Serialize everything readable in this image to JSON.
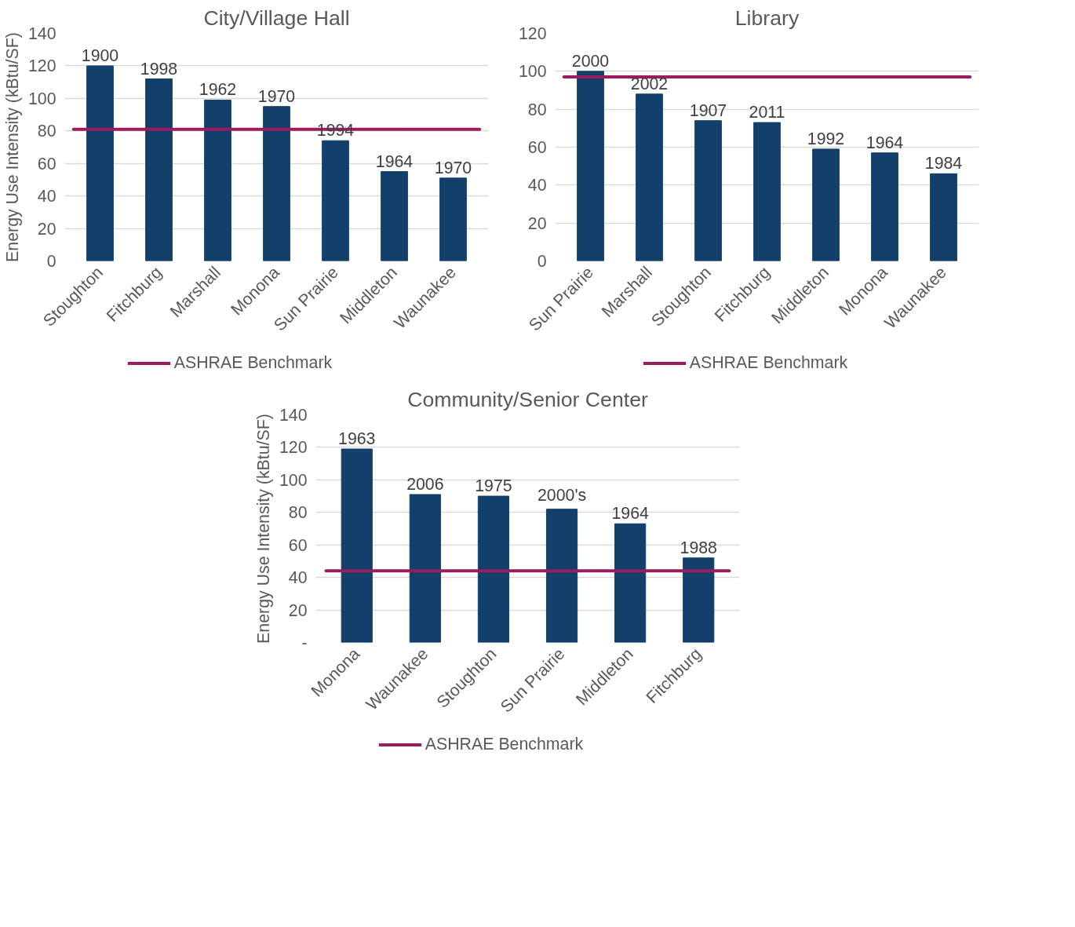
{
  "chart_data": [
    {
      "type": "bar",
      "title": "City/Village Hall",
      "ylabel": "Energy Use Intensity (kBtu/SF)",
      "categories": [
        "Stoughton",
        "Fitchburg",
        "Marshall",
        "Monona",
        "Sun Prairie",
        "Middleton",
        "Waunakee"
      ],
      "values": [
        120,
        112,
        99,
        95,
        74,
        55,
        51
      ],
      "annotations": [
        {
          "text": "1900",
          "x": "Stoughton",
          "y": 120
        },
        {
          "text": "1998",
          "x": "Fitchburg",
          "y": 112
        },
        {
          "text": "1962",
          "x": "Marshall",
          "y": 99
        },
        {
          "text": "1970",
          "x": "Monona",
          "y": 95
        },
        {
          "text": "1994",
          "x": "Sun Prairie",
          "y": 74
        },
        {
          "text": "1964",
          "x": "Middleton",
          "y": 55
        },
        {
          "text": "1970",
          "x": "Waunakee",
          "y": 51
        }
      ],
      "color": "#133f6b",
      "ylim": [
        0,
        140
      ],
      "yticks": [
        0,
        20,
        40,
        60,
        80,
        100,
        120,
        140
      ],
      "grid": "y",
      "legend": "bottom",
      "ref_lines": [
        {
          "axis": "y",
          "value": 81,
          "label": "ASHRAE Benchmark",
          "color": "#9b1c5f"
        }
      ]
    },
    {
      "type": "bar",
      "title": "Library",
      "categories": [
        "Sun Prairie",
        "Marshall",
        "Stoughton",
        "Fitchburg",
        "Middleton",
        "Monona",
        "Waunakee"
      ],
      "values": [
        100,
        88,
        74,
        73,
        59,
        57,
        46
      ],
      "annotations": [
        {
          "text": "2000",
          "x": "Sun Prairie",
          "y": 100
        },
        {
          "text": "2002",
          "x": "Marshall",
          "y": 88
        },
        {
          "text": "1907",
          "x": "Stoughton",
          "y": 74
        },
        {
          "text": "2011",
          "x": "Fitchburg",
          "y": 73
        },
        {
          "text": "1992",
          "x": "Middleton",
          "y": 59
        },
        {
          "text": "1964",
          "x": "Monona",
          "y": 57
        },
        {
          "text": "1984",
          "x": "Waunakee",
          "y": 46
        }
      ],
      "color": "#133f6b",
      "ylim": [
        0,
        120
      ],
      "yticks": [
        0,
        20,
        40,
        60,
        80,
        100,
        120
      ],
      "grid": "y",
      "legend": "bottom",
      "ref_lines": [
        {
          "axis": "y",
          "value": 97,
          "label": "ASHRAE Benchmark",
          "color": "#9b1c5f"
        }
      ]
    },
    {
      "type": "bar",
      "title": "Community/Senior Center",
      "ylabel": "Energy Use Intensity (kBtu/SF)",
      "categories": [
        "Monona",
        "Waunakee",
        "Stoughton",
        "Sun Prairie",
        "Middleton",
        "Fitchburg"
      ],
      "values": [
        119,
        91,
        90,
        82,
        73,
        52
      ],
      "annotations": [
        {
          "text": "1963",
          "x": "Monona",
          "y": 119
        },
        {
          "text": "2006",
          "x": "Waunakee",
          "y": 91
        },
        {
          "text": "1975",
          "x": "Stoughton",
          "y": 90
        },
        {
          "text": "2000's",
          "x": "Sun Prairie",
          "y": 82
        },
        {
          "text": "1964",
          "x": "Middleton",
          "y": 73
        },
        {
          "text": "1988",
          "x": "Fitchburg",
          "y": 52
        }
      ],
      "color": "#133f6b",
      "ylim": [
        0,
        140
      ],
      "yticks": [
        {
          "value": 0,
          "label": "-"
        },
        20,
        40,
        60,
        80,
        100,
        120,
        140
      ],
      "grid": "y",
      "legend": "bottom",
      "ref_lines": [
        {
          "axis": "y",
          "value": 44,
          "label": "ASHRAE Benchmark",
          "color": "#9b1c5f"
        }
      ]
    }
  ]
}
